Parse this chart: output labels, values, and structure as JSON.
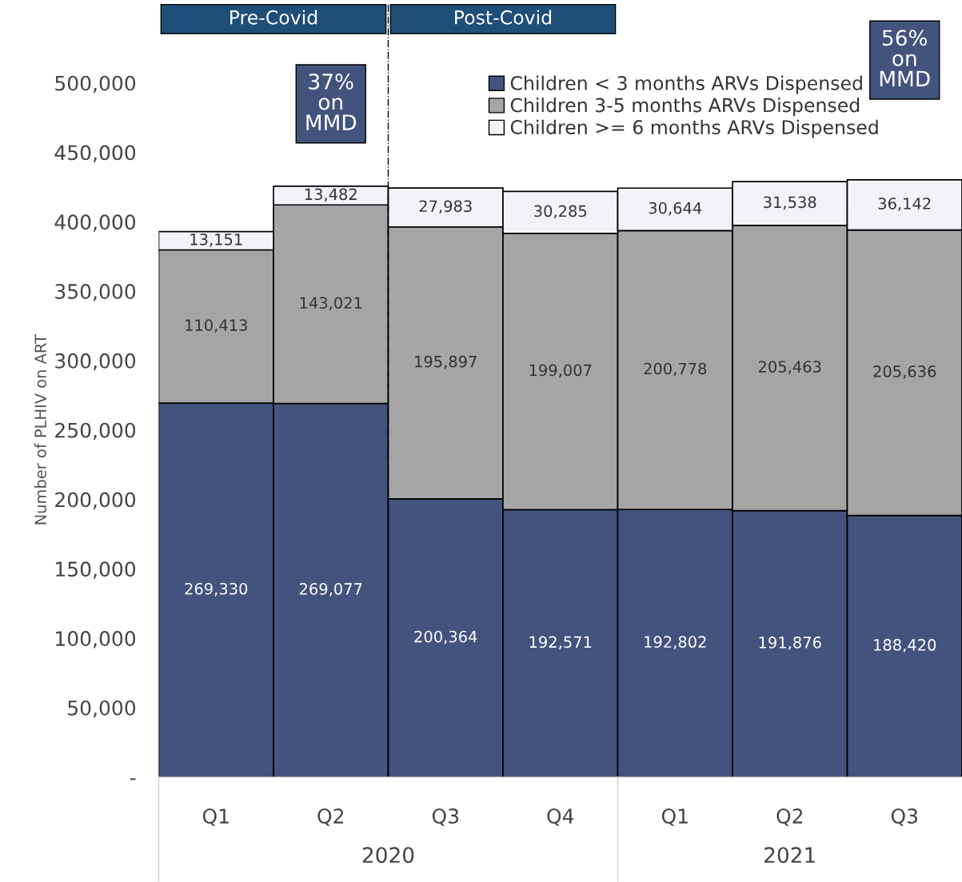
{
  "chart_data": {
    "type": "bar",
    "stacked": true,
    "ylabel": "Number of PLHIV on ART",
    "categories": [
      "Q1",
      "Q2",
      "Q3",
      "Q4",
      "Q1",
      "Q2",
      "Q3"
    ],
    "series": [
      {
        "name": "Children < 3 months ARVs Dispensed",
        "color": "#42547e",
        "values": [
          269330,
          269077,
          200364,
          192571,
          192802,
          191876,
          188420
        ],
        "value_labels": [
          "269,330",
          "269,077",
          "200,364",
          "192,571",
          "192,802",
          "191,876",
          "188,420"
        ]
      },
      {
        "name": "Children 3-5 months ARVs Dispensed",
        "color": "#a5a5a5",
        "values": [
          110413,
          143021,
          195897,
          199007,
          200778,
          205463,
          205636
        ],
        "value_labels": [
          "110,413",
          "143,021",
          "195,897",
          "199,007",
          "200,778",
          "205,463",
          "205,636"
        ]
      },
      {
        "name": "Children >= 6 months ARVs Dispensed",
        "color": "#f2f2f8",
        "values": [
          13151,
          13482,
          27983,
          30285,
          30644,
          31538,
          36142
        ],
        "value_labels": [
          "13,151",
          "13,482",
          "27,983",
          "30,285",
          "30,644",
          "31,538",
          "36,142"
        ]
      }
    ],
    "ylim": [
      0,
      500000
    ],
    "yticks": [
      {
        "value": 0,
        "label": "-"
      },
      {
        "value": 50000,
        "label": "50,000"
      },
      {
        "value": 100000,
        "label": "100,000"
      },
      {
        "value": 150000,
        "label": "150,000"
      },
      {
        "value": 200000,
        "label": "200,000"
      },
      {
        "value": 250000,
        "label": "250,000"
      },
      {
        "value": 300000,
        "label": "300,000"
      },
      {
        "value": 350000,
        "label": "350,000"
      },
      {
        "value": 400000,
        "label": "400,000"
      },
      {
        "value": 450000,
        "label": "450,000"
      },
      {
        "value": 500000,
        "label": "500,000"
      }
    ],
    "grid": false,
    "legend": "top right",
    "annotations": [
      "2020",
      "2021",
      "Pre-Covid",
      "Post-Covid",
      "37%\non\nMMD",
      "56%\non\nMMD"
    ]
  }
}
